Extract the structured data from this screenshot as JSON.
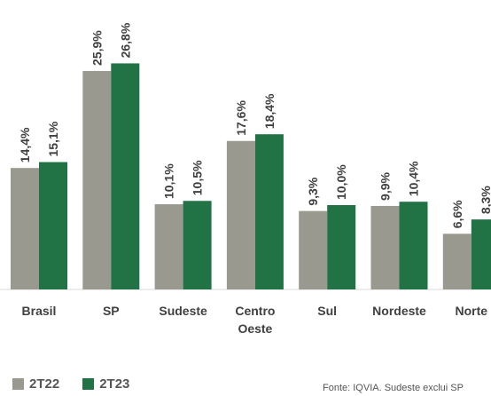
{
  "chart_data": {
    "type": "bar",
    "categories": [
      [
        "Brasil"
      ],
      [
        "SP"
      ],
      [
        "Sudeste"
      ],
      [
        "Centro",
        "Oeste"
      ],
      [
        "Sul"
      ],
      [
        "Nordeste"
      ],
      [
        "Norte"
      ]
    ],
    "series": [
      {
        "name": "2T22",
        "color": "#999990",
        "values": [
          14.4,
          25.9,
          10.1,
          17.6,
          9.3,
          9.9,
          6.6
        ],
        "labels": [
          "14,4%",
          "25,9%",
          "10,1%",
          "17,6%",
          "9,3%",
          "9,9%",
          "6,6%"
        ]
      },
      {
        "name": "2T23",
        "color": "#217346",
        "values": [
          15.1,
          26.8,
          10.5,
          18.4,
          10.0,
          10.4,
          8.3
        ],
        "labels": [
          "15,1%",
          "26,8%",
          "10,5%",
          "18,4%",
          "10,0%",
          "10,4%",
          "8,3%"
        ]
      }
    ],
    "title": "",
    "xlabel": "",
    "ylabel": "",
    "ylim": [
      0,
      30
    ],
    "grid": false,
    "legend_position": "bottom-left"
  },
  "footnote": "Fonte: IQVIA. Sudeste exclui SP"
}
